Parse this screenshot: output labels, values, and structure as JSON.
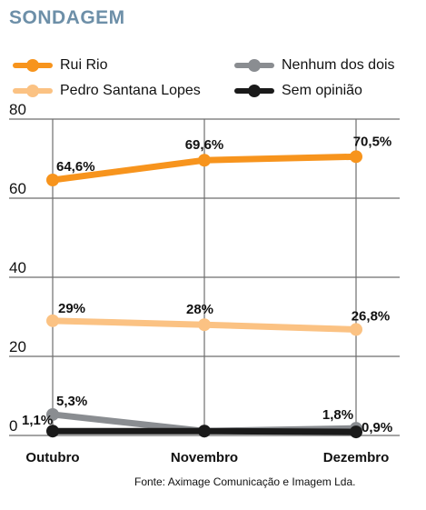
{
  "header": {
    "title": "SONDAGEM"
  },
  "source": "Fonte: Aximage Comunicação e Imagem Lda.",
  "chart_data": {
    "type": "line",
    "categories": [
      "Outubro",
      "Novembro",
      "Dezembro"
    ],
    "ylim": [
      0,
      80
    ],
    "yticks": [
      "0",
      "20",
      "40",
      "60",
      "80"
    ],
    "grid": true,
    "legend_position": "top",
    "series": [
      {
        "name": "Rui Rio",
        "color": "#f7941d",
        "values": [
          64.6,
          69.6,
          70.5
        ],
        "labels": [
          "64,6%",
          "69,6%",
          "70,5%"
        ]
      },
      {
        "name": "Pedro Santana Lopes",
        "color": "#fbc283",
        "values": [
          29,
          28,
          26.8
        ],
        "labels": [
          "29%",
          "28%",
          "26,8%"
        ]
      },
      {
        "name": "Nenhum dos dois",
        "color": "#8a8d91",
        "values": [
          5.3,
          1.1,
          1.8
        ],
        "labels": [
          "5,3%",
          "",
          "1,8%"
        ]
      },
      {
        "name": "Sem opinião",
        "color": "#1a1a1a",
        "values": [
          1.1,
          1.1,
          0.9
        ],
        "labels": [
          "1,1%",
          "",
          "0,9%"
        ]
      }
    ]
  }
}
